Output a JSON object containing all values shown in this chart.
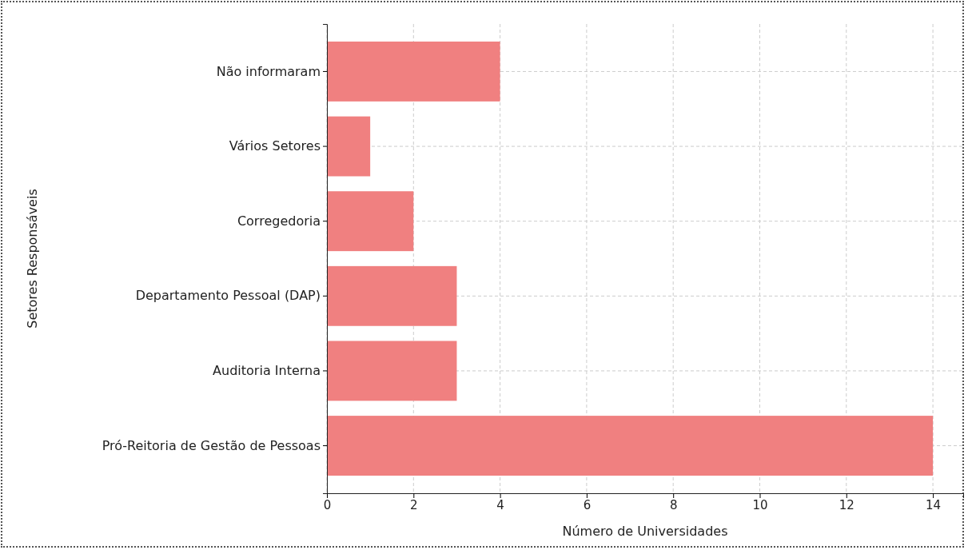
{
  "chart_data": {
    "type": "bar",
    "orientation": "horizontal",
    "xlabel": "Número de Universidades",
    "ylabel": "Setores Responsáveis",
    "categories": [
      "Não informaram",
      "Vários Setores",
      "Corregedoria",
      "Departamento Pessoal (DAP)",
      "Auditoria Interna",
      "Pró-Reitoria de Gestão de Pessoas"
    ],
    "values": [
      4,
      1,
      2,
      3,
      3,
      14
    ],
    "color": "#f08080",
    "xlim": [
      0,
      14.7
    ],
    "xticks": [
      0,
      2,
      4,
      6,
      8,
      10,
      12,
      14
    ],
    "grid": true
  }
}
